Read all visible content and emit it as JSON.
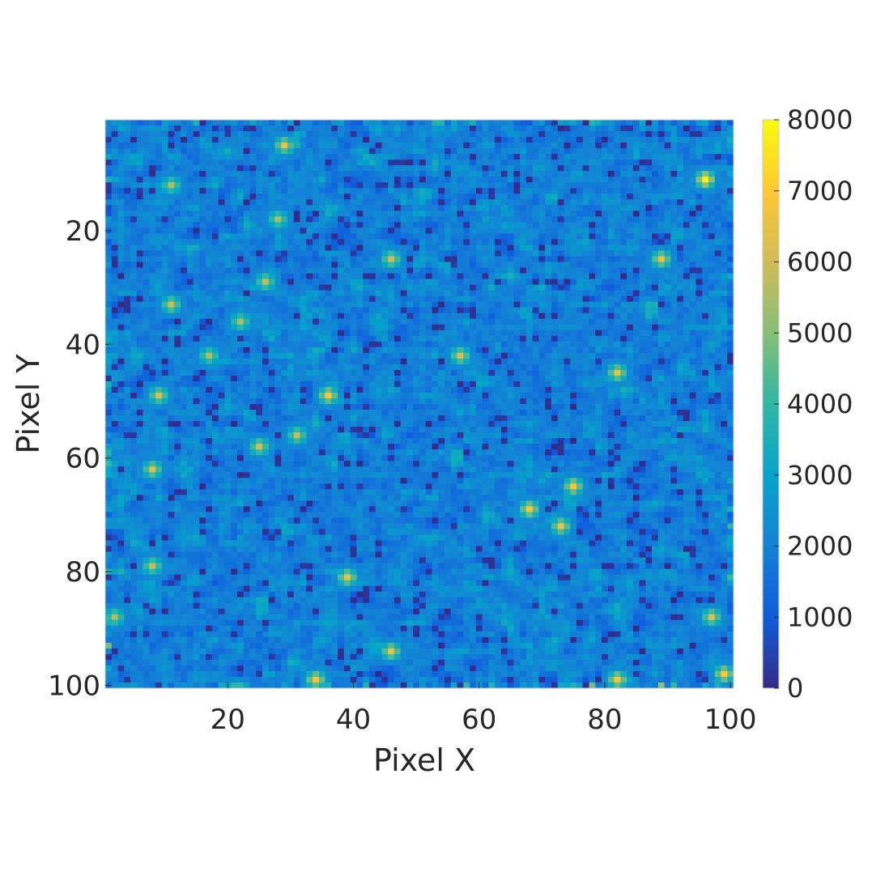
{
  "chart_data": {
    "type": "heatmap",
    "title": "",
    "xlabel": "Pixel X",
    "ylabel": "Pixel Y",
    "grid_size": [
      100,
      100
    ],
    "x_ticks": [
      20,
      40,
      60,
      80,
      100
    ],
    "y_ticks": [
      20,
      40,
      60,
      80,
      100
    ],
    "xlim": [
      1,
      100
    ],
    "ylim": [
      1,
      100
    ],
    "y_direction": "reversed",
    "colormap": "parula",
    "colorbar": {
      "range": [
        0,
        8000
      ],
      "ticks": [
        0,
        1000,
        2000,
        3000,
        4000,
        5000,
        6000,
        7000,
        8000
      ],
      "placement": "right"
    },
    "value_summary": {
      "background_mean": 2000,
      "min": 0,
      "max": 8000,
      "pattern": "speckle noise with scattered bright spots"
    },
    "hot_spots": [
      {
        "x": 29,
        "y": 5,
        "value": 6500
      },
      {
        "x": 96,
        "y": 11,
        "value": 7800
      },
      {
        "x": 11,
        "y": 12,
        "value": 5500
      },
      {
        "x": 28,
        "y": 18,
        "value": 5500
      },
      {
        "x": 89,
        "y": 25,
        "value": 6500
      },
      {
        "x": 46,
        "y": 25,
        "value": 6000
      },
      {
        "x": 26,
        "y": 29,
        "value": 5800
      },
      {
        "x": 11,
        "y": 33,
        "value": 6000
      },
      {
        "x": 22,
        "y": 36,
        "value": 5500
      },
      {
        "x": 57,
        "y": 42,
        "value": 6200
      },
      {
        "x": 17,
        "y": 42,
        "value": 5500
      },
      {
        "x": 82,
        "y": 45,
        "value": 6500
      },
      {
        "x": 36,
        "y": 49,
        "value": 6800
      },
      {
        "x": 9,
        "y": 49,
        "value": 6200
      },
      {
        "x": 31,
        "y": 56,
        "value": 5800
      },
      {
        "x": 25,
        "y": 58,
        "value": 6000
      },
      {
        "x": 8,
        "y": 62,
        "value": 6200
      },
      {
        "x": 75,
        "y": 65,
        "value": 6800
      },
      {
        "x": 68,
        "y": 69,
        "value": 6800
      },
      {
        "x": 73,
        "y": 72,
        "value": 6500
      },
      {
        "x": 39,
        "y": 81,
        "value": 6500
      },
      {
        "x": 8,
        "y": 79,
        "value": 5800
      },
      {
        "x": 97,
        "y": 88,
        "value": 6200
      },
      {
        "x": 2,
        "y": 88,
        "value": 5500
      },
      {
        "x": 46,
        "y": 94,
        "value": 6500
      },
      {
        "x": 34,
        "y": 99,
        "value": 6800
      },
      {
        "x": 82,
        "y": 99,
        "value": 6800
      },
      {
        "x": 99,
        "y": 98,
        "value": 7000
      }
    ]
  }
}
